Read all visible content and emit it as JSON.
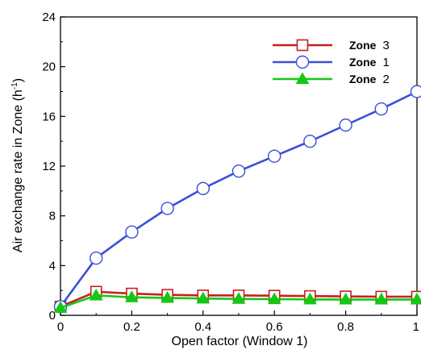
{
  "chart_data": {
    "type": "line",
    "xlabel": "Open factor (Window  1)",
    "ylabel": "Air exchange rate in Zone (h",
    "ylabel_sup": "-1",
    "ylabel_tail": ")",
    "x": [
      0,
      0.1,
      0.2,
      0.3,
      0.4,
      0.5,
      0.6,
      0.7,
      0.8,
      0.9,
      1.0
    ],
    "xlim": [
      0,
      1
    ],
    "ylim": [
      0,
      24
    ],
    "x_ticks": [
      0,
      0.2,
      0.4,
      0.6,
      0.8,
      1
    ],
    "x_tick_labels": [
      "0",
      "0.2",
      "0.4",
      "0.6",
      "0.8",
      "1"
    ],
    "y_ticks": [
      0,
      4,
      8,
      12,
      16,
      20,
      24
    ],
    "y_tick_labels": [
      "0",
      "4",
      "8",
      "12",
      "16",
      "20",
      "24"
    ],
    "grid": false,
    "legend_position": "top-right",
    "series": [
      {
        "name_main": "Zone",
        "name_suffix": "3",
        "color": "#c81e1e",
        "marker": "square",
        "values": [
          0.7,
          1.9,
          1.75,
          1.65,
          1.6,
          1.6,
          1.58,
          1.55,
          1.52,
          1.5,
          1.5
        ]
      },
      {
        "name_main": "Zone",
        "name_suffix": "1",
        "color": "#3a4fd8",
        "marker": "circle",
        "values": [
          0.7,
          4.6,
          6.7,
          8.6,
          10.2,
          11.6,
          12.8,
          14.0,
          15.3,
          16.6,
          18.0
        ]
      },
      {
        "name_main": "Zone",
        "name_suffix": "2",
        "color": "#14c814",
        "marker": "triangle",
        "values": [
          0.6,
          1.6,
          1.45,
          1.4,
          1.35,
          1.32,
          1.3,
          1.28,
          1.27,
          1.27,
          1.27
        ]
      }
    ]
  }
}
